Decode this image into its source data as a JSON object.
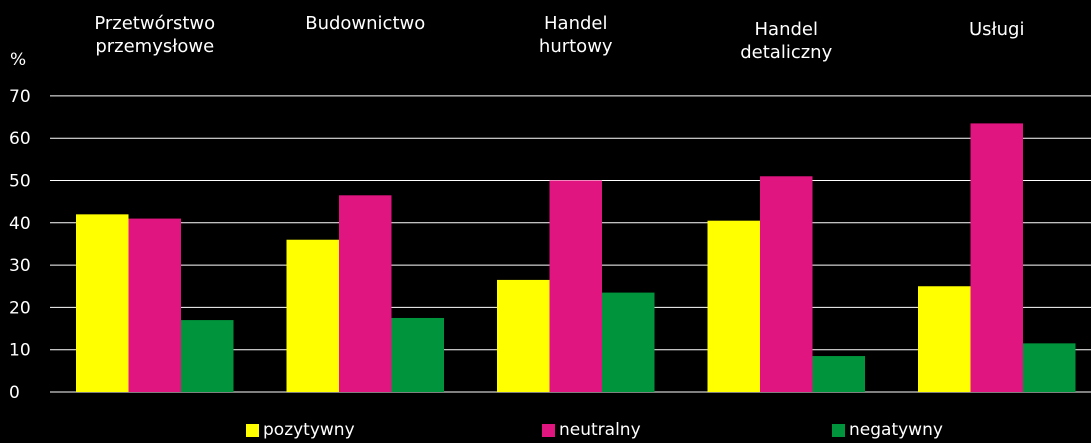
{
  "chart_data": {
    "type": "bar",
    "ylabel": "%",
    "ylim": [
      0,
      70
    ],
    "yticks": [
      0,
      10,
      20,
      30,
      40,
      50,
      60,
      70
    ],
    "grid": true,
    "legend_position": "bottom",
    "categories": [
      "Przetwórstwo\nprzemysłowe",
      "Budownictwo",
      "Handel\nhurtowy",
      "Handel\ndetaliczny",
      "Usługi"
    ],
    "series": [
      {
        "name": "pozytywny",
        "color": "#ffff00",
        "values": [
          42,
          36,
          26.5,
          40.5,
          25
        ]
      },
      {
        "name": "neutralny",
        "color": "#e0157f",
        "values": [
          41,
          46.5,
          50,
          51,
          63.5
        ]
      },
      {
        "name": "negatywny",
        "color": "#00953c",
        "values": [
          17,
          17.5,
          23.5,
          8.5,
          11.5
        ]
      }
    ]
  }
}
